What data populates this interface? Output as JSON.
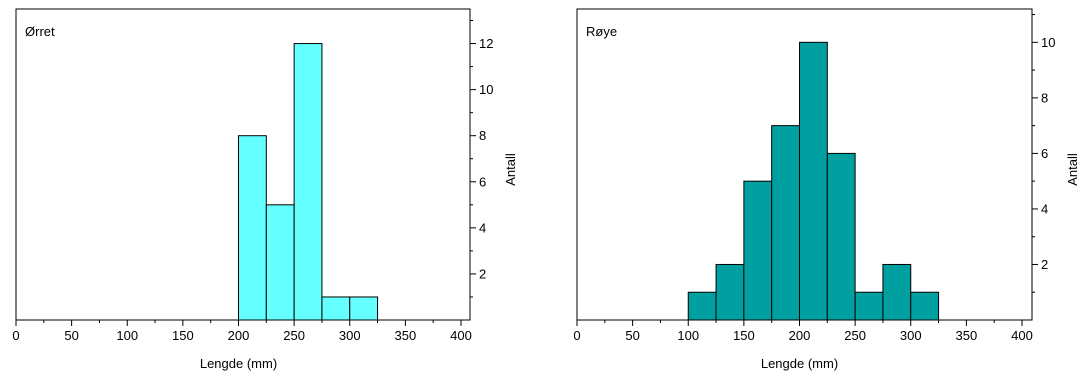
{
  "chart_data": [
    {
      "type": "bar",
      "title": "Ørret",
      "xlabel": "Lengde (mm)",
      "ylabel": "Antall",
      "xlim": [
        0,
        400
      ],
      "ylim": [
        0,
        13.5
      ],
      "x_ticks": [
        0,
        50,
        100,
        150,
        200,
        250,
        300,
        350,
        400
      ],
      "y_ticks": [
        2,
        4,
        6,
        8,
        10,
        12
      ],
      "bin_width": 25,
      "bars": [
        {
          "x_start": 200,
          "x_end": 225,
          "value": 8
        },
        {
          "x_start": 225,
          "x_end": 250,
          "value": 5
        },
        {
          "x_start": 250,
          "x_end": 275,
          "value": 12
        },
        {
          "x_start": 275,
          "x_end": 300,
          "value": 1
        },
        {
          "x_start": 300,
          "x_end": 325,
          "value": 1
        }
      ],
      "color": "#66ffff",
      "grid": false,
      "y_axis_side": "right"
    },
    {
      "type": "bar",
      "title": "Røye",
      "xlabel": "Lengde (mm)",
      "ylabel": "Antall",
      "xlim": [
        0,
        400
      ],
      "ylim": [
        0,
        11.2
      ],
      "x_ticks": [
        0,
        50,
        100,
        150,
        200,
        250,
        300,
        350,
        400
      ],
      "y_ticks": [
        2,
        4,
        6,
        8,
        10
      ],
      "bin_width": 25,
      "bars": [
        {
          "x_start": 100,
          "x_end": 125,
          "value": 1
        },
        {
          "x_start": 125,
          "x_end": 150,
          "value": 2
        },
        {
          "x_start": 150,
          "x_end": 175,
          "value": 5
        },
        {
          "x_start": 175,
          "x_end": 200,
          "value": 7
        },
        {
          "x_start": 200,
          "x_end": 225,
          "value": 10
        },
        {
          "x_start": 225,
          "x_end": 250,
          "value": 6
        },
        {
          "x_start": 250,
          "x_end": 275,
          "value": 1
        },
        {
          "x_start": 275,
          "x_end": 300,
          "value": 2
        },
        {
          "x_start": 300,
          "x_end": 325,
          "value": 1
        }
      ],
      "color": "#00a0a0",
      "grid": false,
      "y_axis_side": "right"
    }
  ]
}
